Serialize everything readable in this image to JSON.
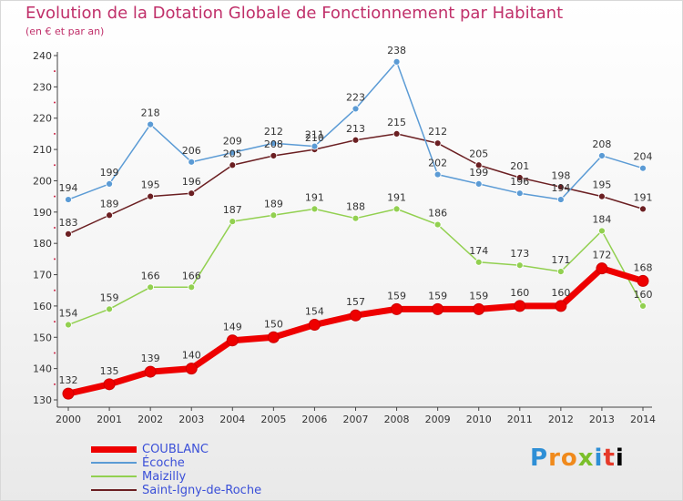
{
  "chart_data": {
    "type": "line",
    "title": "Evolution de la Dotation Globale de Fonctionnement par Habitant",
    "subtitle": "(en € et par an)",
    "x": [
      "2000",
      "2001",
      "2002",
      "2003",
      "2004",
      "2005",
      "2006",
      "2007",
      "2008",
      "2009",
      "2010",
      "2011",
      "2012",
      "2013",
      "2014"
    ],
    "ylim": [
      130,
      240
    ],
    "yticks": [
      130,
      140,
      150,
      160,
      170,
      180,
      190,
      200,
      210,
      220,
      230,
      240
    ],
    "grid": false,
    "legend_position": "bottom-left",
    "series": [
      {
        "name": "COUBLANC",
        "color": "#ee0000",
        "values": [
          132,
          135,
          139,
          140,
          149,
          150,
          154,
          157,
          159,
          159,
          159,
          160,
          160,
          172,
          168
        ]
      },
      {
        "name": "Écoche",
        "color": "#5b9bd5",
        "values": [
          194,
          199,
          218,
          206,
          209,
          212,
          211,
          223,
          238,
          202,
          199,
          196,
          194,
          208,
          204
        ]
      },
      {
        "name": "Maizilly",
        "color": "#92d050",
        "values": [
          154,
          159,
          166,
          166,
          187,
          189,
          191,
          188,
          191,
          186,
          174,
          173,
          171,
          184,
          160
        ]
      },
      {
        "name": "Saint-Igny-de-Roche",
        "color": "#6b1f22",
        "values": [
          183,
          189,
          195,
          196,
          205,
          208,
          210,
          213,
          215,
          212,
          205,
          201,
          198,
          195,
          191
        ]
      }
    ]
  },
  "logo": {
    "text": [
      "P",
      "r",
      "o",
      "x",
      "i",
      "t",
      "i"
    ]
  }
}
